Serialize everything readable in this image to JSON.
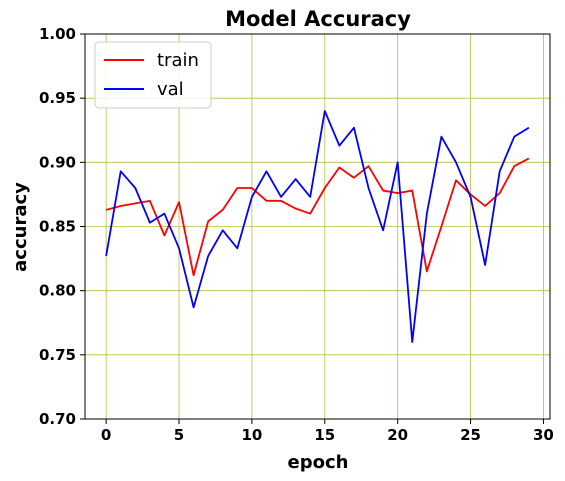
{
  "chart_data": {
    "type": "line",
    "title": "Model Accuracy",
    "xlabel": "epoch",
    "ylabel": "accuracy",
    "xlim": [
      -1.45,
      30.45
    ],
    "ylim": [
      0.7,
      1.0
    ],
    "xticks": [
      0,
      5,
      10,
      15,
      20,
      25,
      30
    ],
    "xtick_labels": [
      "0",
      "5",
      "10",
      "15",
      "20",
      "25",
      "30"
    ],
    "yticks": [
      0.7,
      0.75,
      0.8,
      0.85,
      0.9,
      0.95,
      1.0
    ],
    "ytick_labels": [
      "0.70",
      "0.75",
      "0.80",
      "0.85",
      "0.90",
      "0.95",
      "1.00"
    ],
    "grid": true,
    "grid_color": "#bcbc3a",
    "legend_position": "upper-left",
    "x": [
      0,
      1,
      2,
      3,
      4,
      5,
      6,
      7,
      8,
      9,
      10,
      11,
      12,
      13,
      14,
      15,
      16,
      17,
      18,
      19,
      20,
      21,
      22,
      23,
      24,
      25,
      26,
      27,
      28,
      29
    ],
    "series": [
      {
        "name": "train",
        "color": "#ff0000",
        "values": [
          0.863,
          0.866,
          0.868,
          0.87,
          0.843,
          0.869,
          0.812,
          0.854,
          0.863,
          0.88,
          0.88,
          0.87,
          0.87,
          0.864,
          0.86,
          0.88,
          0.896,
          0.888,
          0.897,
          0.878,
          0.876,
          0.878,
          0.815,
          0.85,
          0.886,
          0.875,
          0.866,
          0.876,
          0.897,
          0.903
        ]
      },
      {
        "name": "val",
        "color": "#0000ff",
        "values": [
          0.827,
          0.893,
          0.88,
          0.853,
          0.86,
          0.833,
          0.787,
          0.827,
          0.847,
          0.833,
          0.873,
          0.893,
          0.873,
          0.887,
          0.873,
          0.94,
          0.913,
          0.927,
          0.88,
          0.847,
          0.9,
          0.76,
          0.86,
          0.92,
          0.9,
          0.873,
          0.82,
          0.893,
          0.92,
          0.927
        ]
      }
    ]
  }
}
